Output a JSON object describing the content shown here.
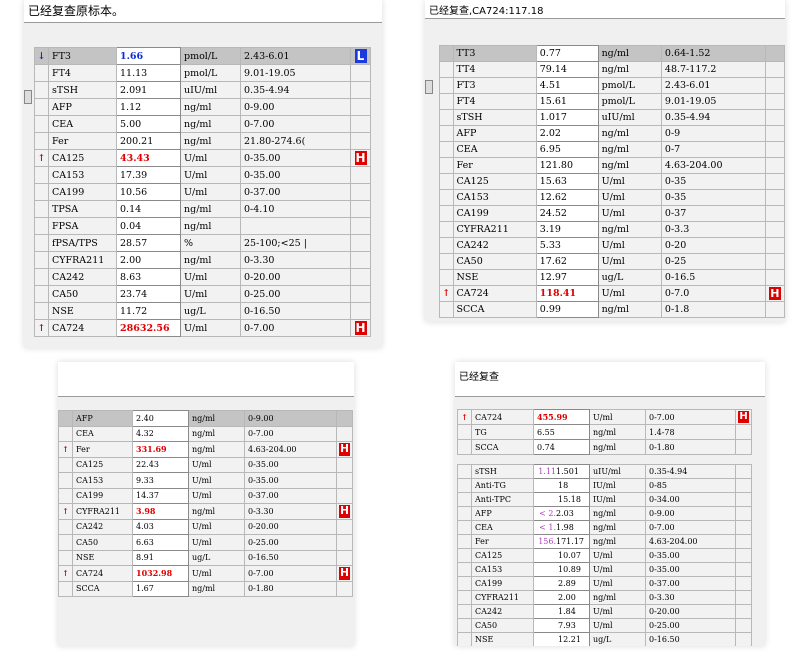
{
  "panels": {
    "p1": {
      "header": "已经复查原标本。",
      "rows": [
        {
          "name": "FT3",
          "value": "1.66",
          "unit": "pmol/L",
          "ref": "2.43-6.01",
          "flag": "L"
        },
        {
          "name": "FT4",
          "value": "11.13",
          "unit": "pmol/L",
          "ref": "9.01-19.05",
          "flag": ""
        },
        {
          "name": "sTSH",
          "value": "2.091",
          "unit": "uIU/ml",
          "ref": "0.35-4.94",
          "flag": ""
        },
        {
          "name": "AFP",
          "value": "1.12",
          "unit": "ng/ml",
          "ref": "0-9.00",
          "flag": ""
        },
        {
          "name": "CEA",
          "value": "5.00",
          "unit": "ng/ml",
          "ref": "0-7.00",
          "flag": ""
        },
        {
          "name": "Fer",
          "value": "200.21",
          "unit": "ng/ml",
          "ref": "21.80-274.6(",
          "flag": ""
        },
        {
          "name": "CA125",
          "value": "43.43",
          "unit": "U/ml",
          "ref": "0-35.00",
          "flag": "H"
        },
        {
          "name": "CA153",
          "value": "17.39",
          "unit": "U/ml",
          "ref": "0-35.00",
          "flag": ""
        },
        {
          "name": "CA199",
          "value": "10.56",
          "unit": "U/ml",
          "ref": "0-37.00",
          "flag": ""
        },
        {
          "name": "TPSA",
          "value": "0.14",
          "unit": "ng/ml",
          "ref": "0-4.10",
          "flag": ""
        },
        {
          "name": "FPSA",
          "value": "0.04",
          "unit": "ng/ml",
          "ref": "",
          "flag": ""
        },
        {
          "name": "fPSA/TPS",
          "value": "28.57",
          "unit": "%",
          "ref": "25-100;<25 |",
          "flag": ""
        },
        {
          "name": "CYFRA211",
          "value": "2.00",
          "unit": "ng/ml",
          "ref": "0-3.30",
          "flag": ""
        },
        {
          "name": "CA242",
          "value": "8.63",
          "unit": "U/ml",
          "ref": "0-20.00",
          "flag": ""
        },
        {
          "name": "CA50",
          "value": "23.74",
          "unit": "U/ml",
          "ref": "0-25.00",
          "flag": ""
        },
        {
          "name": "NSE",
          "value": "11.72",
          "unit": "ug/L",
          "ref": "0-16.50",
          "flag": ""
        },
        {
          "name": "CA724",
          "value": "28632.56",
          "unit": "U/ml",
          "ref": "0-7.00",
          "flag": "H"
        }
      ]
    },
    "p2": {
      "header": "已经复查,CA724:117.18",
      "rows": [
        {
          "name": "TT3",
          "value": "0.77",
          "unit": "ng/ml",
          "ref": "0.64-1.52",
          "flag": ""
        },
        {
          "name": "TT4",
          "value": "79.14",
          "unit": "ng/ml",
          "ref": "48.7-117.2",
          "flag": ""
        },
        {
          "name": "FT3",
          "value": "4.51",
          "unit": "pmol/L",
          "ref": "2.43-6.01",
          "flag": ""
        },
        {
          "name": "FT4",
          "value": "15.61",
          "unit": "pmol/L",
          "ref": "9.01-19.05",
          "flag": ""
        },
        {
          "name": "sTSH",
          "value": "1.017",
          "unit": "uIU/ml",
          "ref": "0.35-4.94",
          "flag": ""
        },
        {
          "name": "AFP",
          "value": "2.02",
          "unit": "ng/ml",
          "ref": "0-9",
          "flag": ""
        },
        {
          "name": "CEA",
          "value": "6.95",
          "unit": "ng/ml",
          "ref": "0-7",
          "flag": ""
        },
        {
          "name": "Fer",
          "value": "121.80",
          "unit": "ng/ml",
          "ref": "4.63-204.00",
          "flag": ""
        },
        {
          "name": "CA125",
          "value": "15.63",
          "unit": "U/ml",
          "ref": "0-35",
          "flag": ""
        },
        {
          "name": "CA153",
          "value": "12.62",
          "unit": "U/ml",
          "ref": "0-35",
          "flag": ""
        },
        {
          "name": "CA199",
          "value": "24.52",
          "unit": "U/ml",
          "ref": "0-37",
          "flag": ""
        },
        {
          "name": "CYFRA211",
          "value": "3.19",
          "unit": "ng/ml",
          "ref": "0-3.3",
          "flag": ""
        },
        {
          "name": "CA242",
          "value": "5.33",
          "unit": "U/ml",
          "ref": "0-20",
          "flag": ""
        },
        {
          "name": "CA50",
          "value": "17.62",
          "unit": "U/ml",
          "ref": "0-25",
          "flag": ""
        },
        {
          "name": "NSE",
          "value": "12.97",
          "unit": "ug/L",
          "ref": "0-16.5",
          "flag": ""
        },
        {
          "name": "CA724",
          "value": "118.41",
          "unit": "U/ml",
          "ref": "0-7.0",
          "flag": "H"
        },
        {
          "name": "SCCA",
          "value": "0.99",
          "unit": "ng/ml",
          "ref": "0-1.8",
          "flag": ""
        }
      ]
    },
    "p3": {
      "rows": [
        {
          "name": "AFP",
          "value": "2.40",
          "unit": "ng/ml",
          "ref": "0-9.00",
          "flag": ""
        },
        {
          "name": "CEA",
          "value": "4.32",
          "unit": "ng/ml",
          "ref": "0-7.00",
          "flag": ""
        },
        {
          "name": "Fer",
          "value": "331.69",
          "unit": "ng/ml",
          "ref": "4.63-204.00",
          "flag": "H"
        },
        {
          "name": "CA125",
          "value": "22.43",
          "unit": "U/ml",
          "ref": "0-35.00",
          "flag": ""
        },
        {
          "name": "CA153",
          "value": "9.33",
          "unit": "U/ml",
          "ref": "0-35.00",
          "flag": ""
        },
        {
          "name": "CA199",
          "value": "14.37",
          "unit": "U/ml",
          "ref": "0-37.00",
          "flag": ""
        },
        {
          "name": "CYFRA211",
          "value": "3.98",
          "unit": "ng/ml",
          "ref": "0-3.30",
          "flag": "H"
        },
        {
          "name": "CA242",
          "value": "4.03",
          "unit": "U/ml",
          "ref": "0-20.00",
          "flag": ""
        },
        {
          "name": "CA50",
          "value": "6.63",
          "unit": "U/ml",
          "ref": "0-25.00",
          "flag": ""
        },
        {
          "name": "NSE",
          "value": "8.91",
          "unit": "ug/L",
          "ref": "0-16.50",
          "flag": ""
        },
        {
          "name": "CA724",
          "value": "1032.98",
          "unit": "U/ml",
          "ref": "0-7.00",
          "flag": "H"
        },
        {
          "name": "SCCA",
          "value": "1.67",
          "unit": "ng/ml",
          "ref": "0-1.80",
          "flag": ""
        }
      ]
    },
    "p4": {
      "header": "已经复查",
      "rows_top": [
        {
          "name": "CA724",
          "value": "455.99",
          "unit": "U/ml",
          "ref": "0-7.00",
          "flag": "H"
        },
        {
          "name": "TG",
          "value": "6.55",
          "unit": "ng/ml",
          "ref": "1.4-78",
          "flag": ""
        },
        {
          "name": "SCCA",
          "value": "0.74",
          "unit": "ng/ml",
          "ref": "0-1.80",
          "flag": ""
        }
      ],
      "rows_bottom": [
        {
          "name": "sTSH",
          "pre": "1.11",
          "value": "1.501",
          "unit": "uIU/ml",
          "ref": "0.35-4.94",
          "flag": ""
        },
        {
          "name": "Anti-TG",
          "pre": "",
          "value": "18",
          "unit": "IU/ml",
          "ref": "0-85",
          "flag": ""
        },
        {
          "name": "Anti-TPC",
          "pre": "",
          "value": "15.18",
          "unit": "IU/ml",
          "ref": "0-34.00",
          "flag": ""
        },
        {
          "name": "AFP",
          "pre": "< 2.",
          "value": "2.03",
          "unit": "ng/ml",
          "ref": "0-9.00",
          "flag": ""
        },
        {
          "name": "CEA",
          "pre": "< 1.",
          "value": "1.98",
          "unit": "ng/ml",
          "ref": "0-7.00",
          "flag": ""
        },
        {
          "name": "Fer",
          "pre": "156.",
          "value": "171.17",
          "unit": "ng/ml",
          "ref": "4.63-204.00",
          "flag": ""
        },
        {
          "name": "CA125",
          "pre": "",
          "value": "10.07",
          "unit": "U/ml",
          "ref": "0-35.00",
          "flag": ""
        },
        {
          "name": "CA153",
          "pre": "",
          "value": "10.89",
          "unit": "U/ml",
          "ref": "0-35.00",
          "flag": ""
        },
        {
          "name": "CA199",
          "pre": "",
          "value": "2.89",
          "unit": "U/ml",
          "ref": "0-37.00",
          "flag": ""
        },
        {
          "name": "CYFRA211",
          "pre": "",
          "value": "2.00",
          "unit": "ng/ml",
          "ref": "0-3.30",
          "flag": ""
        },
        {
          "name": "CA242",
          "pre": "",
          "value": "1.84",
          "unit": "U/ml",
          "ref": "0-20.00",
          "flag": ""
        },
        {
          "name": "CA50",
          "pre": "",
          "value": "7.93",
          "unit": "U/ml",
          "ref": "0-25.00",
          "flag": ""
        },
        {
          "name": "NSE",
          "pre": "",
          "value": "12.21",
          "unit": "ug/L",
          "ref": "0-16.50",
          "flag": ""
        }
      ]
    }
  },
  "colors": {
    "high": "#e00000",
    "low": "#0a2ad8",
    "flag_bg": "#e00000"
  }
}
